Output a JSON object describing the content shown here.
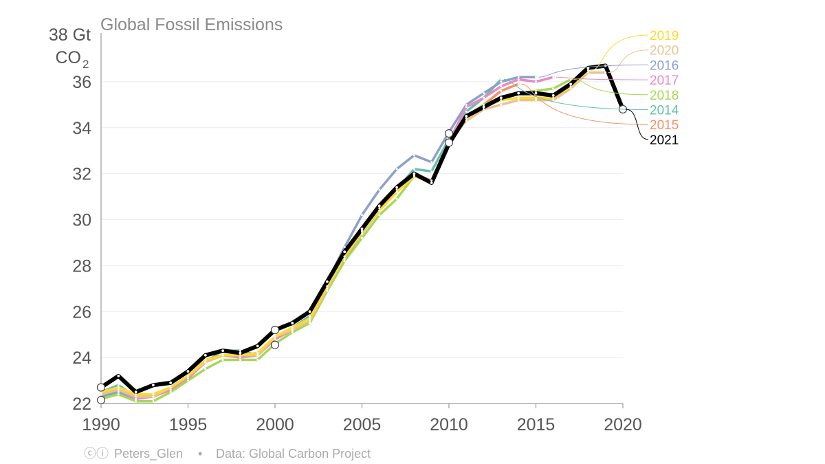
{
  "chart_data": {
    "type": "line",
    "title": "Global Fossil Emissions",
    "ylabel_line1": "38 Gt",
    "ylabel_line2": "CO",
    "ylabel_sub": "2",
    "xlim": [
      1990,
      2020
    ],
    "ylim": [
      22,
      38
    ],
    "xticks": [
      1990,
      1995,
      2000,
      2005,
      2010,
      2015,
      2020
    ],
    "yticks": [
      22,
      24,
      26,
      28,
      30,
      32,
      34,
      36
    ],
    "grid": true,
    "series": [
      {
        "name": "2014",
        "color": "#66c2a5",
        "width": 3.5,
        "x": [
          1990,
          1991,
          1992,
          1993,
          1994,
          1995,
          1996,
          1997,
          1998,
          1999,
          2000,
          2001,
          2002,
          2003,
          2004,
          2005,
          2006,
          2007,
          2008,
          2009,
          2010,
          2011,
          2012,
          2013
        ],
        "values": [
          22.5,
          22.8,
          22.3,
          22.3,
          22.6,
          23.1,
          23.8,
          24.3,
          24.3,
          24.1,
          24.9,
          25.3,
          25.8,
          27.1,
          28.4,
          29.5,
          30.5,
          31.3,
          32.2,
          32.1,
          33.5,
          34.7,
          35.3,
          36.1
        ]
      },
      {
        "name": "2015",
        "color": "#fc8d62",
        "width": 3.5,
        "x": [
          1990,
          1991,
          1992,
          1993,
          1994,
          1995,
          1996,
          1997,
          1998,
          1999,
          2000,
          2001,
          2002,
          2003,
          2004,
          2005,
          2006,
          2007,
          2008,
          2009,
          2010,
          2011,
          2012,
          2013,
          2014
        ],
        "values": [
          22.4,
          22.7,
          22.3,
          22.3,
          22.6,
          23.1,
          23.8,
          24.1,
          24.1,
          24.1,
          24.8,
          25.2,
          25.7,
          27.0,
          28.3,
          29.4,
          30.4,
          31.2,
          32.0,
          31.7,
          33.3,
          34.4,
          35.0,
          35.6,
          35.9
        ]
      },
      {
        "name": "2016",
        "color": "#8da0cb",
        "width": 3.5,
        "x": [
          1990,
          1991,
          1992,
          1993,
          1994,
          1995,
          1996,
          1997,
          1998,
          1999,
          2000,
          2001,
          2002,
          2003,
          2004,
          2005,
          2006,
          2007,
          2008,
          2009,
          2010,
          2011,
          2012,
          2013,
          2014,
          2015
        ],
        "values": [
          22.3,
          22.5,
          22.2,
          22.4,
          22.7,
          23.2,
          23.8,
          24.1,
          24.1,
          24.2,
          24.8,
          25.2,
          25.7,
          27.3,
          28.8,
          30.2,
          31.3,
          32.2,
          32.8,
          32.5,
          33.8,
          35.0,
          35.5,
          36.0,
          36.2,
          36.2
        ]
      },
      {
        "name": "2017",
        "color": "#e78ac3",
        "width": 3.5,
        "x": [
          1990,
          1991,
          1992,
          1993,
          1994,
          1995,
          1996,
          1997,
          1998,
          1999,
          2000,
          2001,
          2002,
          2003,
          2004,
          2005,
          2006,
          2007,
          2008,
          2009,
          2010,
          2011,
          2012,
          2013,
          2014,
          2015,
          2016
        ],
        "values": [
          22.4,
          22.6,
          22.2,
          22.3,
          22.6,
          23.1,
          23.8,
          24.1,
          24.0,
          24.1,
          24.8,
          25.2,
          25.7,
          27.1,
          28.4,
          29.5,
          30.6,
          31.4,
          31.9,
          31.7,
          33.4,
          34.9,
          35.3,
          35.8,
          36.1,
          36.0,
          36.2
        ]
      },
      {
        "name": "2018",
        "color": "#a6d854",
        "width": 3.5,
        "x": [
          1990,
          1991,
          1992,
          1993,
          1994,
          1995,
          1996,
          1997,
          1998,
          1999,
          2000,
          2001,
          2002,
          2003,
          2004,
          2005,
          2006,
          2007,
          2008,
          2009,
          2010,
          2011,
          2012,
          2013,
          2014,
          2015,
          2016,
          2017
        ],
        "values": [
          22.2,
          22.4,
          22.1,
          22.1,
          22.5,
          23.0,
          23.5,
          23.9,
          23.9,
          23.9,
          24.6,
          25.1,
          25.5,
          26.9,
          28.2,
          29.2,
          30.2,
          30.9,
          31.9,
          31.6,
          33.3,
          34.5,
          35.0,
          35.3,
          35.5,
          35.6,
          35.7,
          36.1
        ]
      },
      {
        "name": "2020",
        "color": "#e5c494",
        "width": 3.5,
        "x": [
          1990,
          1991,
          1992,
          1993,
          1994,
          1995,
          1996,
          1997,
          1998,
          1999,
          2000,
          2001,
          2002,
          2003,
          2004,
          2005,
          2006,
          2007,
          2008,
          2009,
          2010,
          2011,
          2012,
          2013,
          2014,
          2015,
          2016,
          2017,
          2018,
          2019
        ],
        "values": [
          22.4,
          22.6,
          22.3,
          22.3,
          22.7,
          23.2,
          23.8,
          24.1,
          24.1,
          24.1,
          24.9,
          25.2,
          25.6,
          27.0,
          28.4,
          29.4,
          30.4,
          31.2,
          31.9,
          31.6,
          33.4,
          34.3,
          34.8,
          35.0,
          35.2,
          35.2,
          35.2,
          35.7,
          36.4,
          36.4
        ]
      },
      {
        "name": "2019",
        "color": "#ffd92f",
        "width": 3.5,
        "x": [
          1990,
          1991,
          1992,
          1993,
          1994,
          1995,
          1996,
          1997,
          1998,
          1999,
          2000,
          2001,
          2002,
          2003,
          2004,
          2005,
          2006,
          2007,
          2008,
          2009,
          2010,
          2011,
          2012,
          2013,
          2014,
          2015,
          2016,
          2017,
          2018
        ],
        "values": [
          22.5,
          22.7,
          22.4,
          22.4,
          22.7,
          23.2,
          23.9,
          24.1,
          24.1,
          24.2,
          24.9,
          25.3,
          25.7,
          27.1,
          28.4,
          29.5,
          30.4,
          31.2,
          31.9,
          31.6,
          33.4,
          34.4,
          34.9,
          35.2,
          35.3,
          35.3,
          35.3,
          35.8,
          36.5
        ]
      },
      {
        "name": "2021",
        "color": "#000000",
        "width": 6,
        "x": [
          1990,
          1991,
          1992,
          1993,
          1994,
          1995,
          1996,
          1997,
          1998,
          1999,
          2000,
          2001,
          2002,
          2003,
          2004,
          2005,
          2006,
          2007,
          2008,
          2009,
          2010,
          2011,
          2012,
          2013,
          2014,
          2015,
          2016,
          2017,
          2018,
          2019,
          2020
        ],
        "values": [
          22.7,
          23.2,
          22.5,
          22.8,
          22.9,
          23.4,
          24.1,
          24.3,
          24.2,
          24.5,
          25.2,
          25.5,
          26.0,
          27.3,
          28.6,
          29.6,
          30.6,
          31.4,
          32.0,
          31.6,
          33.3,
          34.5,
          34.9,
          35.3,
          35.5,
          35.5,
          35.4,
          35.9,
          36.6,
          36.7,
          34.8
        ]
      }
    ],
    "legend": [
      {
        "label": "2019",
        "color": "#ffd92f"
      },
      {
        "label": "2020",
        "color": "#e5c494"
      },
      {
        "label": "2016",
        "color": "#8da0cb"
      },
      {
        "label": "2017",
        "color": "#e78ac3"
      },
      {
        "label": "2018",
        "color": "#a6d854"
      },
      {
        "label": "2014",
        "color": "#66c2a5"
      },
      {
        "label": "2015",
        "color": "#fc8d62"
      },
      {
        "label": "2021",
        "color": "#000000"
      }
    ],
    "markers": [
      {
        "x": 1990,
        "y": 22.7
      },
      {
        "x": 1990,
        "y": 22.15
      },
      {
        "x": 2000,
        "y": 25.2
      },
      {
        "x": 2000,
        "y": 24.55
      },
      {
        "x": 2010,
        "y": 33.75
      },
      {
        "x": 2010,
        "y": 33.35
      },
      {
        "x": 2020,
        "y": 34.8
      }
    ]
  },
  "footer": {
    "cc_symbol": "ⓒⓘ",
    "author": "Peters_Glen",
    "separator": "•",
    "source": "Data: Global Carbon Project"
  }
}
